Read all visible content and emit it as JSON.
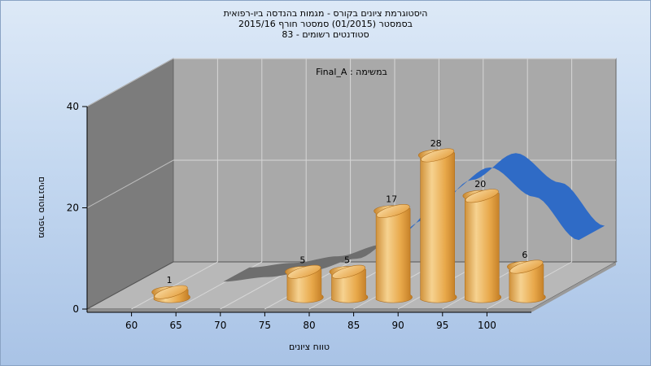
{
  "title": {
    "line1": "היסטוגרמת ציונים בקורס - מגמות בהנדסה ביו-רפואית",
    "line2": "בסמסטר  (01/2015)  סמסטר חורף  2015/16",
    "line3": "סטודנטים רשומים - 83"
  },
  "chart_data": {
    "type": "bar",
    "title": "היסטוגרמת ציונים בקורס - מגמות בהנדסה ביו-רפואית",
    "subtitle": "בסמסטר  (01/2015)  סמסטר חורף  2015/16 | סטודנטים רשומים - 83",
    "annotation": "במשימה : Final_A",
    "xlabel": "טווח ציונים",
    "ylabel": "מספר סטודנטים",
    "x_ticks": [
      "60",
      "65",
      "70",
      "75",
      "80",
      "85",
      "90",
      "95",
      "100"
    ],
    "y_ticks": [
      "0",
      "20",
      "40"
    ],
    "ylim": [
      0,
      40
    ],
    "xlim": [
      55,
      105
    ],
    "grid": true,
    "bars": [
      {
        "x": 60,
        "value": 1,
        "label": "1"
      },
      {
        "x": 75,
        "value": 5,
        "label": "5"
      },
      {
        "x": 80,
        "value": 5,
        "label": "5"
      },
      {
        "x": 85,
        "value": 17,
        "label": "17"
      },
      {
        "x": 90,
        "value": 28,
        "label": "28"
      },
      {
        "x": 95,
        "value": 20,
        "label": "20"
      },
      {
        "x": 100,
        "value": 6,
        "label": "6"
      }
    ],
    "curve": {
      "type": "area-ribbon",
      "x": [
        65,
        70,
        75,
        80,
        85,
        90,
        95,
        100,
        105
      ],
      "y": [
        0.3,
        1.2,
        2.5,
        4.8,
        9.8,
        17.5,
        22.8,
        17.0,
        8.5
      ]
    },
    "colors": {
      "bar": "#e8a84a",
      "bar_light": "#f6d290",
      "bar_dark": "#c9862c",
      "curve": "#2f6bc6",
      "curve_back": "#6e6e6e",
      "back_wall": "#a9a9a9",
      "side_wall": "#7c7c7c",
      "floor": "#b8b8b8"
    }
  }
}
